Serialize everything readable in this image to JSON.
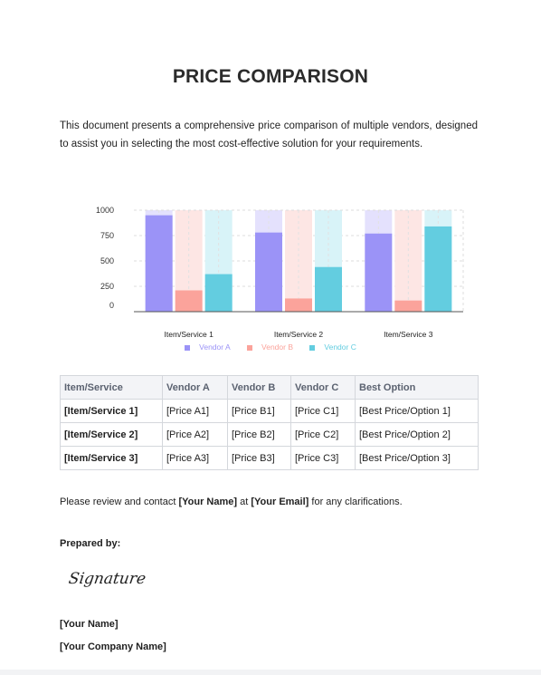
{
  "document": {
    "title": "PRICE COMPARISON",
    "intro": "This document presents a comprehensive price comparison of multiple vendors, designed to assist you in selecting the most cost-effective solution for your requirements.",
    "closing": {
      "before_name": "Please review and contact ",
      "name": "[Your Name]",
      "middle": " at ",
      "email": "[Your Email]",
      "after": " for any clarifications."
    },
    "prepared_by": "Prepared by:",
    "signature": "Signature",
    "your_name": "[Your Name]",
    "company_name": "[Your Company Name]"
  },
  "colors": {
    "vendor_a": "#9b93f7",
    "vendor_b": "#fba39b",
    "vendor_c": "#63cde0",
    "vendor_a_bg": "#e4e1fd",
    "vendor_b_bg": "#fde6e4",
    "vendor_c_bg": "#d8f3f8"
  },
  "chart_data": {
    "type": "bar",
    "categories": [
      "Item/Service 1",
      "Item/Service 2",
      "Item/Service 3"
    ],
    "series": [
      {
        "name": "Vendor A",
        "values": [
          950,
          780,
          770
        ]
      },
      {
        "name": "Vendor B",
        "values": [
          210,
          130,
          110
        ]
      },
      {
        "name": "Vendor C",
        "values": [
          370,
          440,
          840
        ]
      }
    ],
    "yticks": [
      "0",
      "250",
      "500",
      "750",
      "1000"
    ],
    "ylim": [
      0,
      1000
    ],
    "grid": true,
    "legend": "bottom"
  },
  "table": {
    "headers": [
      "Item/Service",
      "Vendor A",
      "Vendor B",
      "Vendor C",
      "Best Option"
    ],
    "rows": [
      [
        "[Item/Service 1]",
        "[Price A1]",
        "[Price B1]",
        "[Price C1]",
        "[Best Price/Option 1]"
      ],
      [
        "[Item/Service 2]",
        "[Price A2]",
        "[Price B2]",
        "[Price C2]",
        "[Best Price/Option 2]"
      ],
      [
        "[Item/Service 3]",
        "[Price A3]",
        "[Price B3]",
        "[Price C3]",
        "[Best Price/Option 3]"
      ]
    ]
  }
}
